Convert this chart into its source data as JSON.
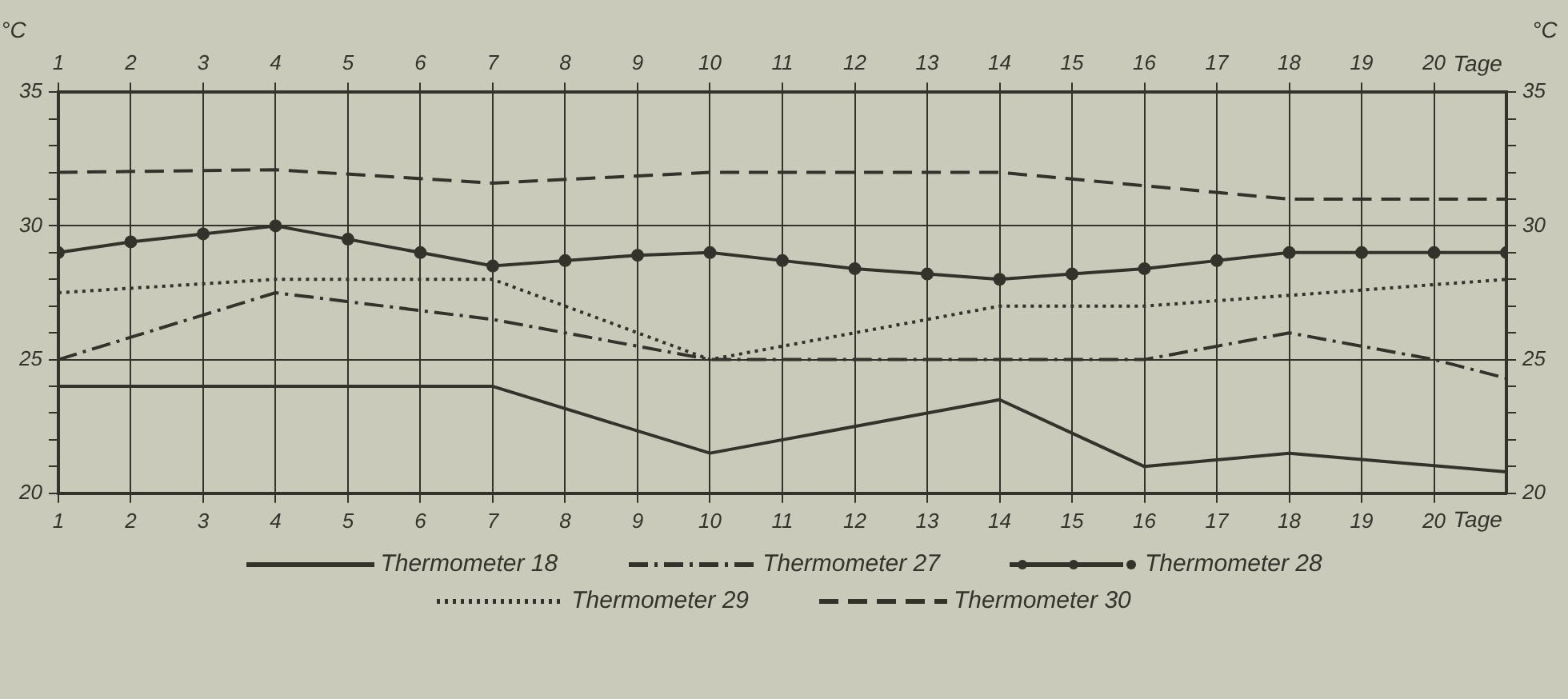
{
  "chart_data": {
    "type": "line",
    "xlabel": "Tage",
    "x2label": "Tage",
    "ylabel": "°C",
    "y2label": "°C",
    "xlim": [
      1,
      21
    ],
    "xticks": [
      1,
      2,
      3,
      4,
      5,
      6,
      7,
      8,
      9,
      10,
      11,
      12,
      13,
      14,
      15,
      16,
      17,
      18,
      19,
      20
    ],
    "x2lim": [
      1,
      21
    ],
    "x2ticks": [
      1,
      2,
      3,
      4,
      5,
      6,
      7,
      8,
      9,
      10,
      11,
      12,
      13,
      14,
      15,
      16,
      17,
      18,
      19,
      20
    ],
    "ylim": [
      20,
      35
    ],
    "yticks": [
      20,
      {
        "value": 21,
        "label": null
      },
      {
        "value": 22,
        "label": null
      },
      {
        "value": 23,
        "label": null
      },
      {
        "value": 24,
        "label": null
      },
      25,
      {
        "value": 26,
        "label": null
      },
      {
        "value": 27,
        "label": null
      },
      {
        "value": 28,
        "label": null
      },
      {
        "value": 29,
        "label": null
      },
      30,
      {
        "value": 31,
        "label": null
      },
      {
        "value": 32,
        "label": null
      },
      {
        "value": 33,
        "label": null
      },
      {
        "value": 34,
        "label": null
      },
      35
    ],
    "y2lim": [
      20,
      35
    ],
    "y2ticks": [
      20,
      {
        "value": 21,
        "label": null
      },
      {
        "value": 22,
        "label": null
      },
      {
        "value": 23,
        "label": null
      },
      {
        "value": 24,
        "label": null
      },
      25,
      {
        "value": 26,
        "label": null
      },
      {
        "value": 27,
        "label": null
      },
      {
        "value": 28,
        "label": null
      },
      {
        "value": 29,
        "label": null
      },
      30,
      {
        "value": 31,
        "label": null
      },
      {
        "value": 32,
        "label": null
      },
      {
        "value": 33,
        "label": null
      },
      {
        "value": 34,
        "label": null
      },
      35
    ],
    "grid": true,
    "legend": "bottom",
    "series": [
      {
        "name": "Thermometer 18",
        "color": "#33332b",
        "line_style": "solid",
        "marker": "none",
        "x": [
          1,
          7,
          10,
          14,
          16,
          18,
          21
        ],
        "values": [
          24,
          24,
          21.5,
          23.5,
          21,
          21.5,
          20.8
        ]
      },
      {
        "name": "Thermometer 27",
        "color": "#33332b",
        "line_style": "dashdot",
        "marker": "none",
        "x": [
          1,
          4,
          7,
          10,
          16,
          18,
          20,
          21
        ],
        "values": [
          25,
          27.5,
          26.5,
          25,
          25,
          26,
          25,
          24.3
        ]
      },
      {
        "name": "Thermometer 28",
        "color": "#33332b",
        "line_style": "solid",
        "marker": "circle",
        "x": [
          1,
          2,
          3,
          4,
          5,
          6,
          7,
          8,
          9,
          10,
          11,
          12,
          13,
          14,
          15,
          16,
          17,
          18,
          19,
          20,
          21
        ],
        "values": [
          29,
          29.4,
          29.7,
          30,
          29.5,
          29,
          28.5,
          28.7,
          28.9,
          29,
          28.7,
          28.4,
          28.2,
          28,
          28.2,
          28.4,
          28.7,
          29,
          29,
          29,
          29
        ]
      },
      {
        "name": "Thermometer 29",
        "color": "#33332b",
        "line_style": "dotted",
        "marker": "none",
        "x": [
          1,
          4,
          7,
          10,
          14,
          16,
          21
        ],
        "values": [
          27.5,
          28,
          28,
          25,
          27,
          27,
          28
        ]
      },
      {
        "name": "Thermometer 30",
        "color": "#33332b",
        "line_style": "dashed",
        "marker": "none",
        "x": [
          1,
          4,
          7,
          10,
          14,
          18,
          21
        ],
        "values": [
          32,
          32.1,
          31.6,
          32,
          32,
          31,
          31
        ]
      }
    ]
  }
}
